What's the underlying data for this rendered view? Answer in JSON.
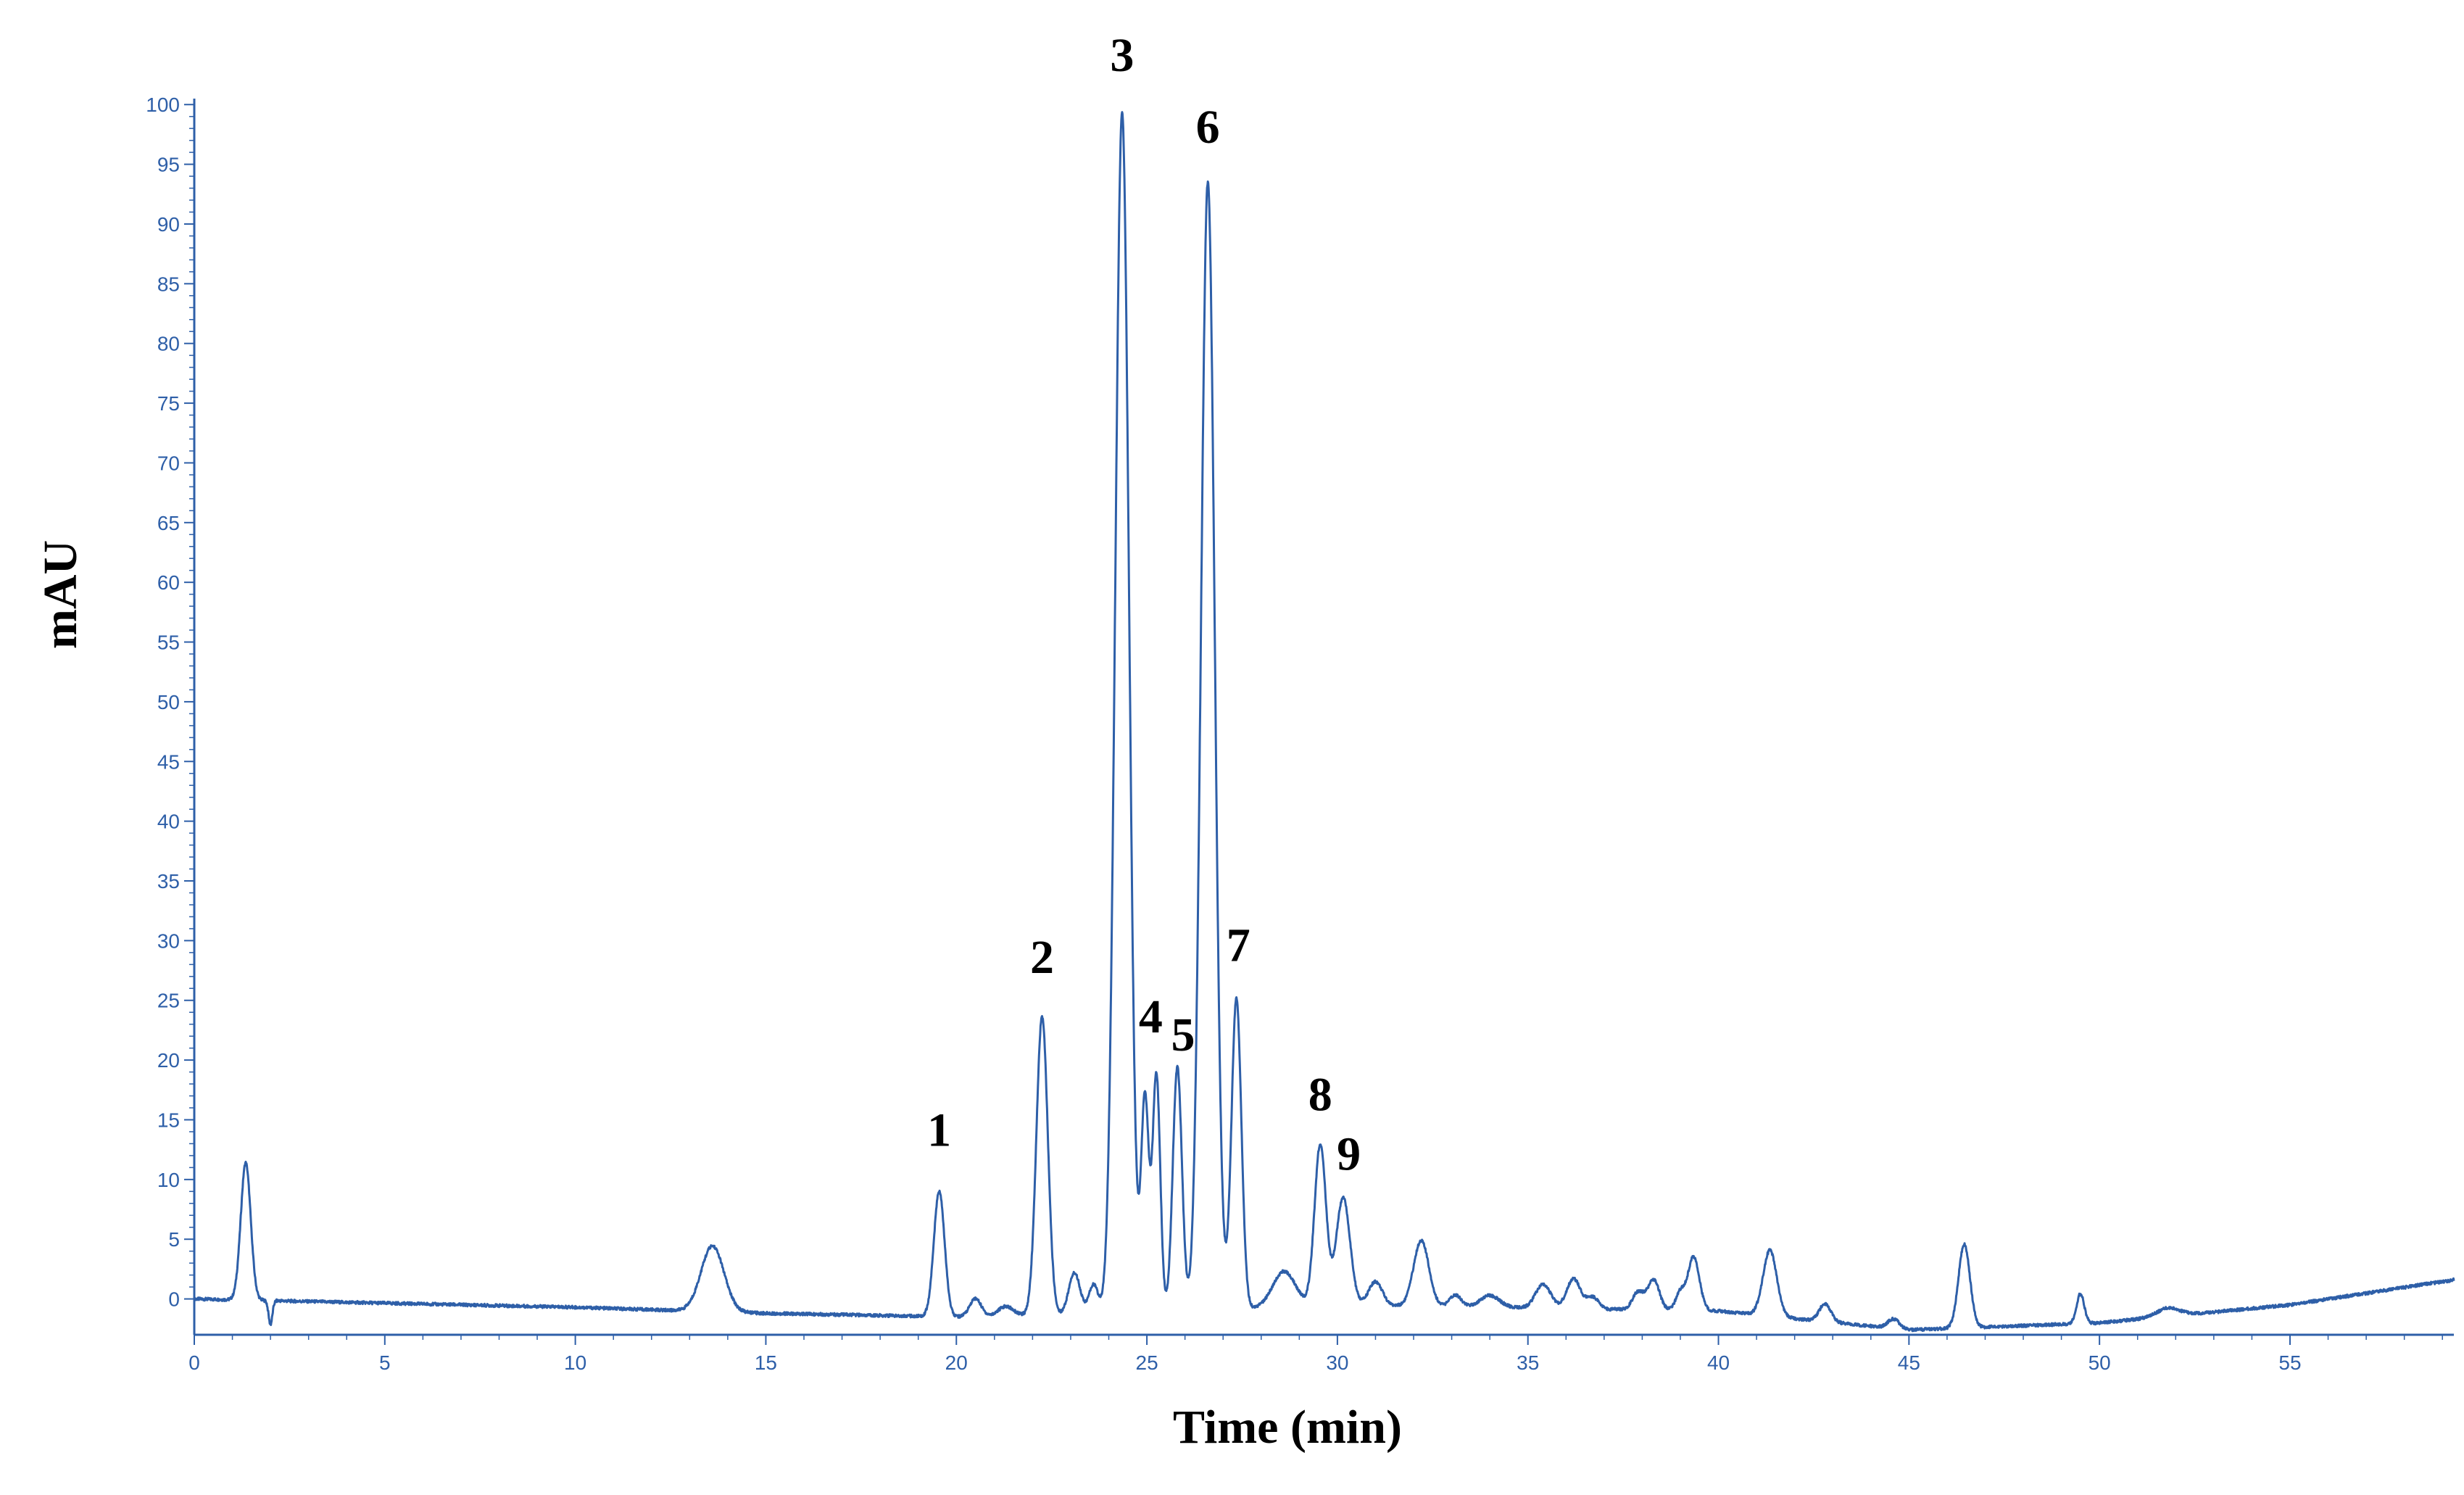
{
  "chart_data": {
    "type": "line",
    "xlabel": "Time (min)",
    "ylabel": "mAU",
    "xlim": [
      0,
      59.3
    ],
    "ylim": [
      -3,
      100.5
    ],
    "x_ticks": [
      0,
      5,
      10,
      15,
      20,
      25,
      30,
      35,
      40,
      45,
      50,
      55
    ],
    "y_ticks": [
      0,
      5,
      10,
      15,
      20,
      25,
      30,
      35,
      40,
      45,
      50,
      55,
      60,
      65,
      70,
      75,
      80,
      85,
      90,
      95,
      100
    ],
    "grid": false,
    "line_color": "#2e5fa8",
    "axis_color": "#2e5fa8",
    "baseline": [
      [
        0,
        0
      ],
      [
        10,
        -0.7
      ],
      [
        15,
        -1.2
      ],
      [
        20,
        -1.5
      ],
      [
        25,
        -1.2
      ],
      [
        30,
        -0.5
      ],
      [
        40,
        -1.0
      ],
      [
        45,
        -2.6
      ],
      [
        50,
        -2.0
      ],
      [
        55,
        -0.5
      ],
      [
        59.3,
        1.6
      ]
    ],
    "peaks": [
      {
        "rt": 1.35,
        "height": 11.5,
        "width": 0.13
      },
      {
        "rt": 13.6,
        "height": 5.5,
        "width": 0.3
      },
      {
        "rt": 19.55,
        "height": 10.5,
        "width": 0.14
      },
      {
        "rt": 20.5,
        "height": 1.5,
        "width": 0.15
      },
      {
        "rt": 21.3,
        "height": 0.8,
        "width": 0.2
      },
      {
        "rt": 22.25,
        "height": 25.0,
        "width": 0.15
      },
      {
        "rt": 23.1,
        "height": 3.5,
        "width": 0.15
      },
      {
        "rt": 23.6,
        "height": 2.5,
        "width": 0.12
      },
      {
        "rt": 24.35,
        "height": 100.5,
        "width": 0.18
      },
      {
        "rt": 24.95,
        "height": 18.0,
        "width": 0.1
      },
      {
        "rt": 25.25,
        "height": 20.0,
        "width": 0.1
      },
      {
        "rt": 25.8,
        "height": 20.5,
        "width": 0.12
      },
      {
        "rt": 26.6,
        "height": 94.5,
        "width": 0.18
      },
      {
        "rt": 27.35,
        "height": 26.0,
        "width": 0.13
      },
      {
        "rt": 28.6,
        "height": 3.0,
        "width": 0.3
      },
      {
        "rt": 29.55,
        "height": 13.5,
        "width": 0.15
      },
      {
        "rt": 30.15,
        "height": 9.0,
        "width": 0.18
      },
      {
        "rt": 31.0,
        "height": 2.0,
        "width": 0.18
      },
      {
        "rt": 32.2,
        "height": 5.5,
        "width": 0.2
      },
      {
        "rt": 33.1,
        "height": 1.0,
        "width": 0.15
      },
      {
        "rt": 34.0,
        "height": 1.0,
        "width": 0.25
      },
      {
        "rt": 35.4,
        "height": 2.0,
        "width": 0.2
      },
      {
        "rt": 36.2,
        "height": 2.5,
        "width": 0.18
      },
      {
        "rt": 36.7,
        "height": 1.0,
        "width": 0.15
      },
      {
        "rt": 37.9,
        "height": 1.5,
        "width": 0.15
      },
      {
        "rt": 38.3,
        "height": 2.5,
        "width": 0.15
      },
      {
        "rt": 39.0,
        "height": 1.5,
        "width": 0.12
      },
      {
        "rt": 39.35,
        "height": 4.5,
        "width": 0.15
      },
      {
        "rt": 41.35,
        "height": 5.5,
        "width": 0.18
      },
      {
        "rt": 42.8,
        "height": 1.5,
        "width": 0.15
      },
      {
        "rt": 44.6,
        "height": 0.8,
        "width": 0.15
      },
      {
        "rt": 46.45,
        "height": 7.0,
        "width": 0.15
      },
      {
        "rt": 49.5,
        "height": 2.5,
        "width": 0.1
      },
      {
        "rt": 51.8,
        "height": 0.7,
        "width": 0.3
      }
    ],
    "annotations": [
      {
        "label": "1",
        "x": 19.55,
        "y": 12.8
      },
      {
        "label": "2",
        "x": 22.25,
        "y": 27.3
      },
      {
        "label": "3",
        "x": 24.35,
        "y": 102.8
      },
      {
        "label": "4",
        "x": 25.1,
        "y": 22.3
      },
      {
        "label": "5",
        "x": 25.95,
        "y": 20.8
      },
      {
        "label": "6",
        "x": 26.6,
        "y": 96.8
      },
      {
        "label": "7",
        "x": 27.4,
        "y": 28.3
      },
      {
        "label": "8",
        "x": 29.55,
        "y": 15.8
      },
      {
        "label": "9",
        "x": 30.3,
        "y": 10.8
      }
    ]
  }
}
